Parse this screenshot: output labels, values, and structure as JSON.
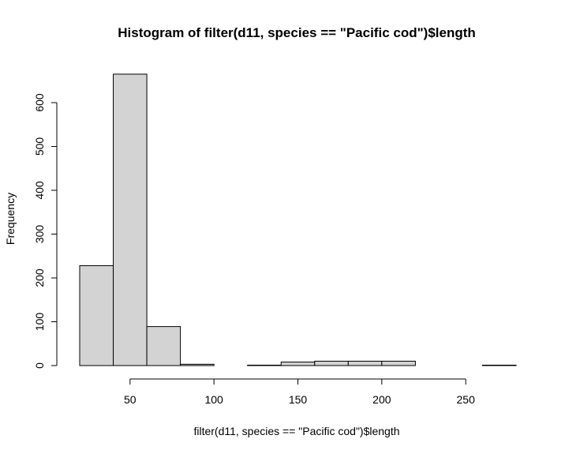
{
  "chart_data": {
    "type": "bar",
    "title": "Histogram of filter(d11, species == \"Pacific cod\")$length",
    "xlabel": "filter(d11, species == \"Pacific cod\")$length",
    "ylabel": "Frequency",
    "bins": [
      {
        "start": 20,
        "end": 40,
        "count": 228
      },
      {
        "start": 40,
        "end": 60,
        "count": 665
      },
      {
        "start": 60,
        "end": 80,
        "count": 89
      },
      {
        "start": 80,
        "end": 100,
        "count": 3
      },
      {
        "start": 100,
        "end": 120,
        "count": 0
      },
      {
        "start": 120,
        "end": 140,
        "count": 1
      },
      {
        "start": 140,
        "end": 160,
        "count": 8
      },
      {
        "start": 160,
        "end": 180,
        "count": 10
      },
      {
        "start": 180,
        "end": 200,
        "count": 10
      },
      {
        "start": 200,
        "end": 220,
        "count": 10
      },
      {
        "start": 220,
        "end": 240,
        "count": 0
      },
      {
        "start": 240,
        "end": 260,
        "count": 0
      },
      {
        "start": 260,
        "end": 280,
        "count": 1
      }
    ],
    "xticks": [
      50,
      100,
      150,
      200,
      250
    ],
    "yticks": [
      0,
      100,
      200,
      300,
      400,
      500,
      600
    ],
    "xlim": [
      20,
      280
    ],
    "ylim": [
      0,
      665
    ],
    "grid": false,
    "bar_color": "#d3d3d3"
  }
}
